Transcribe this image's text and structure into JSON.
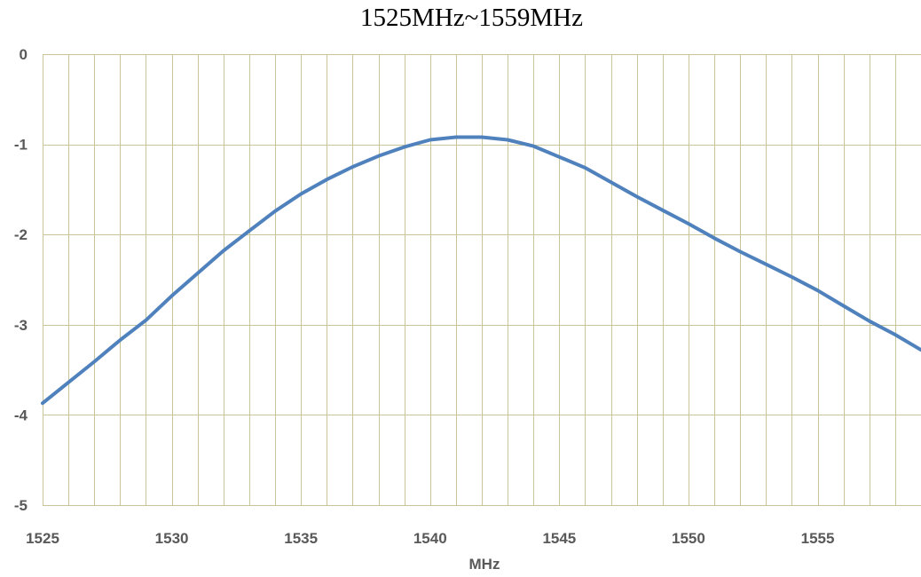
{
  "chart_data": {
    "type": "line",
    "title": "1525MHz~1559MHz",
    "xlabel": "MHz",
    "ylabel": "",
    "xlim": [
      1525,
      1559
    ],
    "ylim": [
      -5,
      0
    ],
    "x_ticks": [
      1525,
      1530,
      1535,
      1540,
      1545,
      1550,
      1555
    ],
    "y_ticks": [
      0,
      -1,
      -2,
      -3,
      -4,
      -5
    ],
    "grid": "vertical every 1 MHz, horizontal at each y tick",
    "grid_color": "#c9c39a",
    "series": [
      {
        "color": "#4f81bd",
        "x": [
          1525,
          1526,
          1527,
          1528,
          1529,
          1530,
          1531,
          1532,
          1533,
          1534,
          1535,
          1536,
          1537,
          1538,
          1539,
          1540,
          1541,
          1542,
          1543,
          1544,
          1545,
          1546,
          1547,
          1548,
          1549,
          1550,
          1551,
          1552,
          1553,
          1554,
          1555,
          1556,
          1557,
          1558,
          1559
        ],
        "values": [
          -3.87,
          -3.64,
          -3.41,
          -3.17,
          -2.95,
          -2.68,
          -2.43,
          -2.18,
          -1.96,
          -1.74,
          -1.55,
          -1.39,
          -1.25,
          -1.13,
          -1.03,
          -0.95,
          -0.92,
          -0.92,
          -0.95,
          -1.02,
          -1.14,
          -1.26,
          -1.42,
          -1.58,
          -1.73,
          -1.88,
          -2.04,
          -2.19,
          -2.33,
          -2.47,
          -2.62,
          -2.79,
          -2.96,
          -3.11,
          -3.28
        ]
      }
    ]
  }
}
